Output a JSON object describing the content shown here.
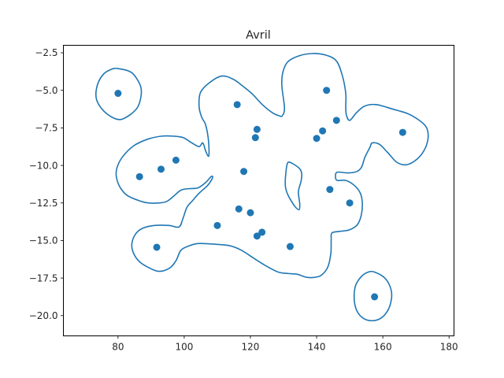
{
  "chart_data": {
    "type": "scatter",
    "title": "Avril",
    "xlabel": "",
    "ylabel": "",
    "xlim": [
      63.5,
      181.5
    ],
    "ylim": [
      -21.35,
      -2.0
    ],
    "xticks": [
      80,
      100,
      120,
      140,
      160,
      180
    ],
    "yticks": [
      -2.5,
      -5.0,
      -7.5,
      -10.0,
      -12.5,
      -15.0,
      -17.5,
      -20.0
    ],
    "xtick_labels": [
      "80",
      "100",
      "120",
      "140",
      "160",
      "180"
    ],
    "ytick_labels": [
      "−2.5",
      "−5.0",
      "−7.5",
      "−10.0",
      "−12.5",
      "−15.0",
      "−17.5",
      "−20.0"
    ],
    "grid": false,
    "color": "#1f77b4",
    "points": [
      {
        "x": 80.0,
        "y": -5.2
      },
      {
        "x": 86.5,
        "y": -10.75
      },
      {
        "x": 93.0,
        "y": -10.25
      },
      {
        "x": 97.5,
        "y": -9.65
      },
      {
        "x": 91.7,
        "y": -15.45
      },
      {
        "x": 110.0,
        "y": -14.0
      },
      {
        "x": 116.0,
        "y": -5.95
      },
      {
        "x": 122.0,
        "y": -7.6
      },
      {
        "x": 121.5,
        "y": -8.15
      },
      {
        "x": 118.0,
        "y": -10.4
      },
      {
        "x": 116.5,
        "y": -12.9
      },
      {
        "x": 120.0,
        "y": -13.15
      },
      {
        "x": 122.0,
        "y": -14.7
      },
      {
        "x": 123.5,
        "y": -14.45
      },
      {
        "x": 132.0,
        "y": -15.4
      },
      {
        "x": 143.0,
        "y": -5.0
      },
      {
        "x": 141.8,
        "y": -7.7
      },
      {
        "x": 140.0,
        "y": -8.2
      },
      {
        "x": 146.0,
        "y": -7.0
      },
      {
        "x": 144.0,
        "y": -11.6
      },
      {
        "x": 150.0,
        "y": -12.5
      },
      {
        "x": 166.0,
        "y": -7.8
      },
      {
        "x": 157.5,
        "y": -18.75
      }
    ],
    "contours": [
      {
        "name": "left-top-loop",
        "points": [
          [
            80,
            -3.55
          ],
          [
            84,
            -3.8
          ],
          [
            86.6,
            -4.6
          ],
          [
            87,
            -5.3
          ],
          [
            85.7,
            -6.2
          ],
          [
            82,
            -6.85
          ],
          [
            79.3,
            -6.9
          ],
          [
            75.8,
            -6.4
          ],
          [
            73.5,
            -5.6
          ],
          [
            73.7,
            -4.7
          ],
          [
            75.5,
            -3.95
          ],
          [
            78,
            -3.6
          ]
        ]
      },
      {
        "name": "main-loop",
        "points": [
          [
            105.6,
            -8.5
          ],
          [
            106.5,
            -9.05
          ],
          [
            107.3,
            -9.4
          ],
          [
            107.5,
            -9.05
          ],
          [
            107.2,
            -8.1
          ],
          [
            106.4,
            -7.25
          ],
          [
            105.3,
            -6.8
          ],
          [
            104.5,
            -6.1
          ],
          [
            104.9,
            -5.15
          ],
          [
            107.6,
            -4.5
          ],
          [
            111.3,
            -4.05
          ],
          [
            114.7,
            -4.25
          ],
          [
            117.6,
            -4.7
          ],
          [
            120.6,
            -5.25
          ],
          [
            123.6,
            -5.95
          ],
          [
            126.7,
            -6.5
          ],
          [
            128.8,
            -6.7
          ],
          [
            129.6,
            -6.7
          ],
          [
            130.3,
            -6.2
          ],
          [
            129.5,
            -4.7
          ],
          [
            129.8,
            -3.8
          ],
          [
            131.3,
            -3.1
          ],
          [
            134.7,
            -2.7
          ],
          [
            138.7,
            -2.55
          ],
          [
            142.7,
            -2.65
          ],
          [
            146,
            -3.05
          ],
          [
            147.8,
            -4.05
          ],
          [
            148.8,
            -5.2
          ],
          [
            148.8,
            -6.1
          ],
          [
            149,
            -6.65
          ],
          [
            150,
            -7
          ],
          [
            152,
            -6.5
          ],
          [
            154.5,
            -6.05
          ],
          [
            158,
            -5.95
          ],
          [
            163,
            -6.25
          ],
          [
            167.5,
            -6.55
          ],
          [
            170.7,
            -6.95
          ],
          [
            172.8,
            -7.35
          ],
          [
            173.6,
            -7.75
          ],
          [
            173.6,
            -8.3
          ],
          [
            172.6,
            -8.95
          ],
          [
            170.5,
            -9.55
          ],
          [
            167.3,
            -9.95
          ],
          [
            164.3,
            -9.8
          ],
          [
            161.5,
            -9.15
          ],
          [
            159,
            -8.6
          ],
          [
            156.8,
            -8.5
          ],
          [
            156.1,
            -8.8
          ],
          [
            154.6,
            -9.45
          ],
          [
            153.6,
            -10.1
          ],
          [
            152.2,
            -10.4
          ],
          [
            149.5,
            -10.5
          ],
          [
            146.2,
            -10.45
          ],
          [
            145.7,
            -10.75
          ],
          [
            146.2,
            -11
          ],
          [
            148.8,
            -11
          ],
          [
            151.5,
            -11.35
          ],
          [
            153.2,
            -11.85
          ],
          [
            153.8,
            -12.5
          ],
          [
            153.5,
            -13.3
          ],
          [
            152.3,
            -13.95
          ],
          [
            149.8,
            -14.3
          ],
          [
            146.7,
            -14.4
          ],
          [
            144.6,
            -14.5
          ],
          [
            144.4,
            -14.95
          ],
          [
            144.3,
            -15.85
          ],
          [
            143.4,
            -16.75
          ],
          [
            141.5,
            -17.3
          ],
          [
            139.5,
            -17.45
          ],
          [
            137,
            -17.45
          ],
          [
            134.2,
            -17.25
          ],
          [
            131.5,
            -17.2
          ],
          [
            128.4,
            -17.1
          ],
          [
            124.8,
            -16.7
          ],
          [
            120.8,
            -16.15
          ],
          [
            117.3,
            -15.65
          ],
          [
            113.8,
            -15.35
          ],
          [
            109.5,
            -15.25
          ],
          [
            104.5,
            -15.2
          ],
          [
            101.5,
            -15.35
          ],
          [
            99,
            -15.65
          ],
          [
            97.5,
            -16.35
          ],
          [
            95.5,
            -16.85
          ],
          [
            92.2,
            -17.05
          ],
          [
            88.8,
            -16.75
          ],
          [
            86.2,
            -16.35
          ],
          [
            84.5,
            -15.75
          ],
          [
            84.2,
            -15.2
          ],
          [
            85.2,
            -14.6
          ],
          [
            87.3,
            -14.2
          ],
          [
            91,
            -14.0
          ],
          [
            95.4,
            -14.0
          ],
          [
            98.4,
            -14.1
          ],
          [
            99.6,
            -13.55
          ],
          [
            100.8,
            -12.8
          ],
          [
            102.5,
            -12.35
          ],
          [
            104.5,
            -11.85
          ],
          [
            107,
            -11.35
          ],
          [
            108.3,
            -10.95
          ],
          [
            108.6,
            -10.75
          ],
          [
            108.1,
            -10.75
          ],
          [
            106.4,
            -11.15
          ],
          [
            104.1,
            -11.5
          ],
          [
            101.3,
            -11.55
          ],
          [
            99,
            -11.65
          ],
          [
            96.8,
            -12.05
          ],
          [
            94.7,
            -12.4
          ],
          [
            92.3,
            -12.5
          ],
          [
            89.2,
            -12.5
          ],
          [
            86.4,
            -12.35
          ],
          [
            82.8,
            -12
          ],
          [
            80.6,
            -11.45
          ],
          [
            79.5,
            -10.75
          ],
          [
            79.7,
            -10.15
          ],
          [
            81.3,
            -9.45
          ],
          [
            84.7,
            -8.7
          ],
          [
            89,
            -8.25
          ],
          [
            93.2,
            -8.05
          ],
          [
            96.7,
            -8.05
          ],
          [
            99.7,
            -8.15
          ],
          [
            102.3,
            -8.5
          ],
          [
            104.5,
            -8.75
          ]
        ]
      },
      {
        "name": "inner-hole",
        "points": [
          [
            131.2,
            -9.85
          ],
          [
            132.5,
            -9.85
          ],
          [
            134.8,
            -10.2
          ],
          [
            135.5,
            -10.55
          ],
          [
            135.3,
            -11.05
          ],
          [
            134.5,
            -11.75
          ],
          [
            134.9,
            -12.55
          ],
          [
            134.7,
            -12.95
          ],
          [
            133.5,
            -12.75
          ],
          [
            132.3,
            -12.35
          ],
          [
            131.3,
            -11.95
          ],
          [
            130.6,
            -11.45
          ],
          [
            130.6,
            -10.75
          ]
        ]
      },
      {
        "name": "bottom-right-loop",
        "points": [
          [
            157.5,
            -17.1
          ],
          [
            160.6,
            -17.5
          ],
          [
            162.4,
            -18.2
          ],
          [
            162.6,
            -18.9
          ],
          [
            161.4,
            -19.7
          ],
          [
            158.8,
            -20.25
          ],
          [
            155.3,
            -20.3
          ],
          [
            152.6,
            -19.85
          ],
          [
            151.4,
            -19.05
          ],
          [
            151.7,
            -18.05
          ],
          [
            153.5,
            -17.4
          ],
          [
            155.6,
            -17.1
          ]
        ]
      }
    ]
  }
}
